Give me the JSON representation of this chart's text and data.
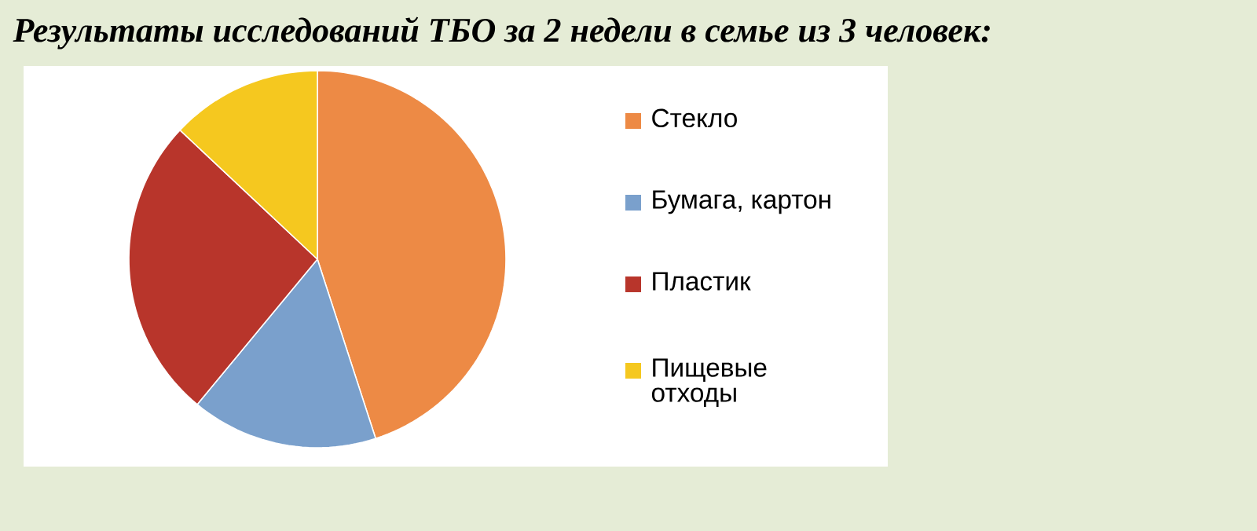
{
  "chart_data": {
    "type": "pie",
    "title": "Результаты исследований ТБО за 2 недели в семье из 3 человек:",
    "categories": [
      "Стекло",
      "Бумага, картон",
      "Пластик",
      "Пищевые отходы"
    ],
    "values": [
      45,
      16,
      26,
      13
    ],
    "colors": [
      "#ed8a45",
      "#7aa0cc",
      "#b8352b",
      "#f5c81f"
    ],
    "legend": "right"
  }
}
